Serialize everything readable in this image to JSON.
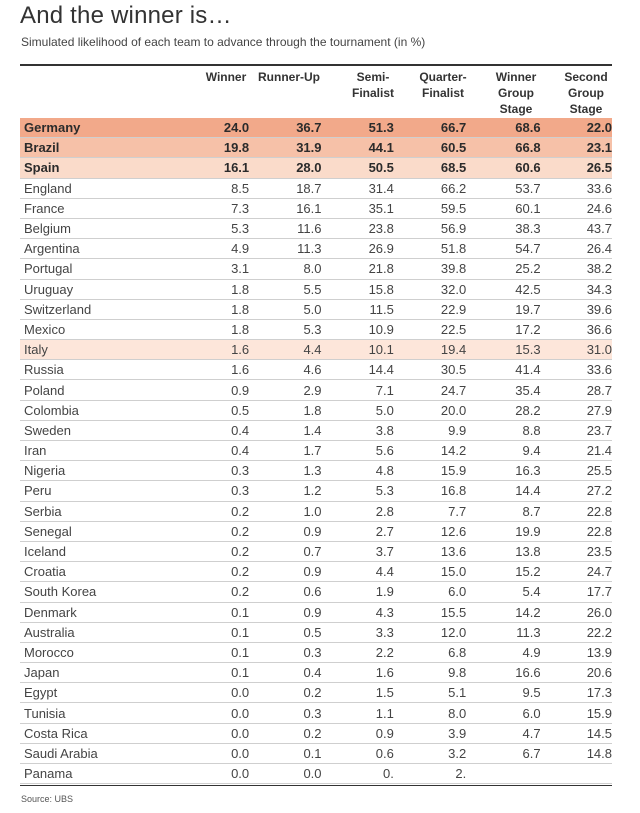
{
  "title": "And the winner is…",
  "subtitle": "Simulated likelihood of each team to advance through the tournament (in %)",
  "headers": [
    "Winner",
    "Runner-Up",
    "Semi-\nFinalist",
    "Quarter-\nFinalist",
    "Winner\nGroup\nStage",
    "Second\nGroup\nStage"
  ],
  "colors": {
    "highlight_1": "#f2a98a",
    "highlight_2": "#f6c1a8",
    "highlight_3": "#fadbca",
    "highlight_4": "#fde6da"
  },
  "rows": [
    {
      "team": "Germany",
      "values": [
        "24.0",
        "36.7",
        "51.3",
        "66.7",
        "68.6",
        "22.0"
      ],
      "highlight": 1
    },
    {
      "team": "Brazil",
      "values": [
        "19.8",
        "31.9",
        "44.1",
        "60.5",
        "66.8",
        "23.1"
      ],
      "highlight": 2
    },
    {
      "team": "Spain",
      "values": [
        "16.1",
        "28.0",
        "50.5",
        "68.5",
        "60.6",
        "26.5"
      ],
      "highlight": 3
    },
    {
      "team": "England",
      "values": [
        "8.5",
        "18.7",
        "31.4",
        "66.2",
        "53.7",
        "33.6"
      ],
      "highlight": 0
    },
    {
      "team": "France",
      "values": [
        "7.3",
        "16.1",
        "35.1",
        "59.5",
        "60.1",
        "24.6"
      ],
      "highlight": 0
    },
    {
      "team": "Belgium",
      "values": [
        "5.3",
        "11.6",
        "23.8",
        "56.9",
        "38.3",
        "43.7"
      ],
      "highlight": 0
    },
    {
      "team": "Argentina",
      "values": [
        "4.9",
        "11.3",
        "26.9",
        "51.8",
        "54.7",
        "26.4"
      ],
      "highlight": 0
    },
    {
      "team": "Portugal",
      "values": [
        "3.1",
        "8.0",
        "21.8",
        "39.8",
        "25.2",
        "38.2"
      ],
      "highlight": 0
    },
    {
      "team": "Uruguay",
      "values": [
        "1.8",
        "5.5",
        "15.8",
        "32.0",
        "42.5",
        "34.3"
      ],
      "highlight": 0
    },
    {
      "team": "Switzerland",
      "values": [
        "1.8",
        "5.0",
        "11.5",
        "22.9",
        "19.7",
        "39.6"
      ],
      "highlight": 0
    },
    {
      "team": "Mexico",
      "values": [
        "1.8",
        "5.3",
        "10.9",
        "22.5",
        "17.2",
        "36.6"
      ],
      "highlight": 0
    },
    {
      "team": "Italy",
      "values": [
        "1.6",
        "4.4",
        "10.1",
        "19.4",
        "15.3",
        "31.0"
      ],
      "highlight": 4
    },
    {
      "team": "Russia",
      "values": [
        "1.6",
        "4.6",
        "14.4",
        "30.5",
        "41.4",
        "33.6"
      ],
      "highlight": 0
    },
    {
      "team": "Poland",
      "values": [
        "0.9",
        "2.9",
        "7.1",
        "24.7",
        "35.4",
        "28.7"
      ],
      "highlight": 0
    },
    {
      "team": "Colombia",
      "values": [
        "0.5",
        "1.8",
        "5.0",
        "20.0",
        "28.2",
        "27.9"
      ],
      "highlight": 0
    },
    {
      "team": "Sweden",
      "values": [
        "0.4",
        "1.4",
        "3.8",
        "9.9",
        "8.8",
        "23.7"
      ],
      "highlight": 0
    },
    {
      "team": "Iran",
      "values": [
        "0.4",
        "1.7",
        "5.6",
        "14.2",
        "9.4",
        "21.4"
      ],
      "highlight": 0
    },
    {
      "team": "Nigeria",
      "values": [
        "0.3",
        "1.3",
        "4.8",
        "15.9",
        "16.3",
        "25.5"
      ],
      "highlight": 0
    },
    {
      "team": "Peru",
      "values": [
        "0.3",
        "1.2",
        "5.3",
        "16.8",
        "14.4",
        "27.2"
      ],
      "highlight": 0
    },
    {
      "team": "Serbia",
      "values": [
        "0.2",
        "1.0",
        "2.8",
        "7.7",
        "8.7",
        "22.8"
      ],
      "highlight": 0
    },
    {
      "team": "Senegal",
      "values": [
        "0.2",
        "0.9",
        "2.7",
        "12.6",
        "19.9",
        "22.8"
      ],
      "highlight": 0
    },
    {
      "team": "Iceland",
      "values": [
        "0.2",
        "0.7",
        "3.7",
        "13.6",
        "13.8",
        "23.5"
      ],
      "highlight": 0
    },
    {
      "team": "Croatia",
      "values": [
        "0.2",
        "0.9",
        "4.4",
        "15.0",
        "15.2",
        "24.7"
      ],
      "highlight": 0
    },
    {
      "team": "South Korea",
      "values": [
        "0.2",
        "0.6",
        "1.9",
        "6.0",
        "5.4",
        "17.7"
      ],
      "highlight": 0
    },
    {
      "team": "Denmark",
      "values": [
        "0.1",
        "0.9",
        "4.3",
        "15.5",
        "14.2",
        "26.0"
      ],
      "highlight": 0
    },
    {
      "team": "Australia",
      "values": [
        "0.1",
        "0.5",
        "3.3",
        "12.0",
        "11.3",
        "22.2"
      ],
      "highlight": 0
    },
    {
      "team": "Morocco",
      "values": [
        "0.1",
        "0.3",
        "2.2",
        "6.8",
        "4.9",
        "13.9"
      ],
      "highlight": 0
    },
    {
      "team": "Japan",
      "values": [
        "0.1",
        "0.4",
        "1.6",
        "9.8",
        "16.6",
        "20.6"
      ],
      "highlight": 0
    },
    {
      "team": "Egypt",
      "values": [
        "0.0",
        "0.2",
        "1.5",
        "5.1",
        "9.5",
        "17.3"
      ],
      "highlight": 0
    },
    {
      "team": "Tunisia",
      "values": [
        "0.0",
        "0.3",
        "1.1",
        "8.0",
        "6.0",
        "15.9"
      ],
      "highlight": 0
    },
    {
      "team": "Costa Rica",
      "values": [
        "0.0",
        "0.2",
        "0.9",
        "3.9",
        "4.7",
        "14.5"
      ],
      "highlight": 0
    },
    {
      "team": "Saudi Arabia",
      "values": [
        "0.0",
        "0.1",
        "0.6",
        "3.2",
        "6.7",
        "14.8"
      ],
      "highlight": 0
    },
    {
      "team": "Panama",
      "values": [
        "0.0",
        "0.0",
        "0.",
        "2.",
        "",
        ""
      ],
      "highlight": 0
    }
  ],
  "source": "Source: UBS"
}
